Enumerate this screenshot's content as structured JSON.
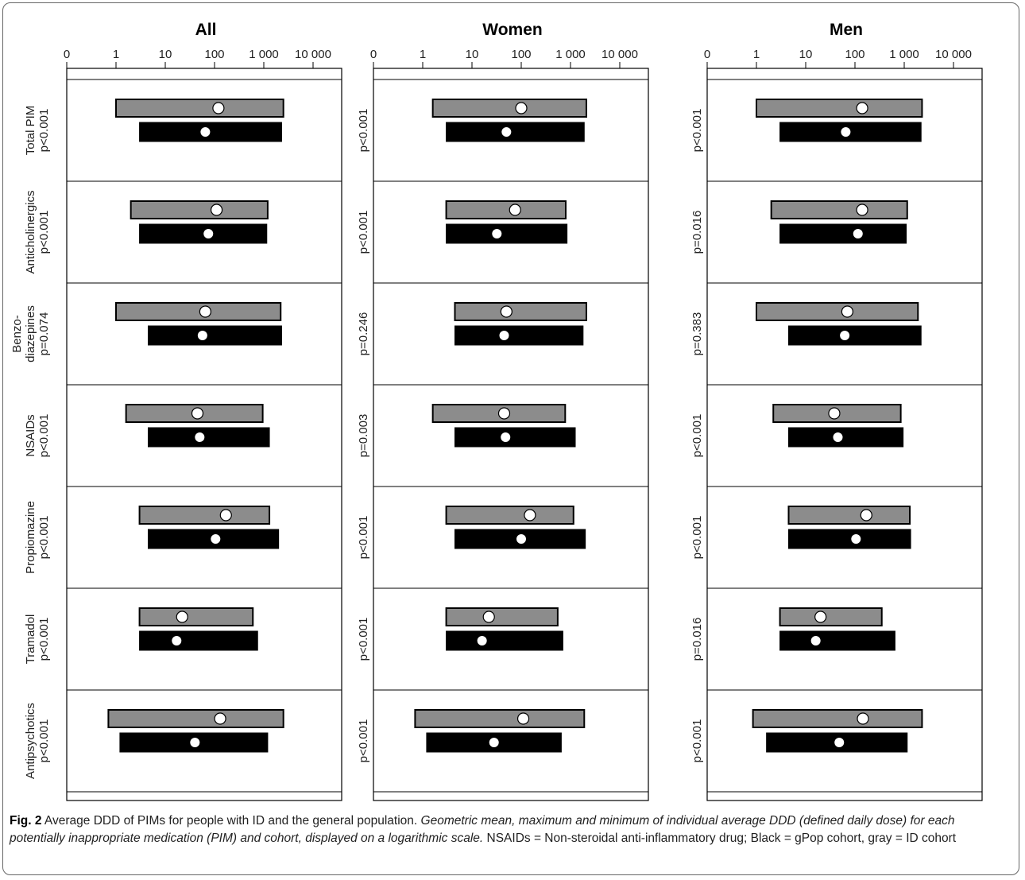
{
  "chart_data": {
    "type": "bar",
    "scale": "log",
    "series": [
      {
        "name": "gPop cohort",
        "color": "#000000"
      },
      {
        "name": "ID cohort",
        "color": "#8c8c8c"
      }
    ],
    "x_tick_labels": [
      "0",
      "1",
      "10",
      "100",
      "1 000",
      "10 000"
    ],
    "panels": [
      {
        "title": "All",
        "rows": [
          {
            "label_lines": [
              "Total PIM",
              "p<0.001"
            ],
            "pvalue": "",
            "id": {
              "min": 1,
              "max": 2500,
              "mean": 120
            },
            "gpop": {
              "min": 3,
              "max": 2300,
              "mean": 65
            }
          },
          {
            "label_lines": [
              "Anticholinergics",
              "p<0.001"
            ],
            "pvalue": "",
            "id": {
              "min": 2,
              "max": 1200,
              "mean": 110
            },
            "gpop": {
              "min": 3,
              "max": 1150,
              "mean": 75
            }
          },
          {
            "label_lines": [
              "Benzo-",
              "diazepines",
              "p=0.074"
            ],
            "pvalue": "",
            "id": {
              "min": 1,
              "max": 2200,
              "mean": 65
            },
            "gpop": {
              "min": 4.5,
              "max": 2300,
              "mean": 57
            }
          },
          {
            "label_lines": [
              "NSAIDs",
              "p<0.001"
            ],
            "pvalue": "",
            "id": {
              "min": 1.6,
              "max": 950,
              "mean": 45
            },
            "gpop": {
              "min": 4.5,
              "max": 1300,
              "mean": 50
            }
          },
          {
            "label_lines": [
              "Propiomazine",
              "p<0.001"
            ],
            "pvalue": "",
            "id": {
              "min": 3,
              "max": 1300,
              "mean": 170
            },
            "gpop": {
              "min": 4.5,
              "max": 2000,
              "mean": 105
            }
          },
          {
            "label_lines": [
              "Tramadol",
              "p<0.001"
            ],
            "pvalue": "",
            "id": {
              "min": 3,
              "max": 600,
              "mean": 22
            },
            "gpop": {
              "min": 3,
              "max": 750,
              "mean": 17
            }
          },
          {
            "label_lines": [
              "Antipsychotics",
              "p<0.001"
            ],
            "pvalue": "",
            "id": {
              "min": 0.7,
              "max": 2500,
              "mean": 130
            },
            "gpop": {
              "min": 1.2,
              "max": 1200,
              "mean": 40
            }
          }
        ]
      },
      {
        "title": "Women",
        "rows": [
          {
            "label_lines": [],
            "pvalue": "p<0.001",
            "id": {
              "min": 1.6,
              "max": 2100,
              "mean": 100
            },
            "gpop": {
              "min": 3,
              "max": 1900,
              "mean": 50
            }
          },
          {
            "label_lines": [],
            "pvalue": "p<0.001",
            "id": {
              "min": 3,
              "max": 800,
              "mean": 75
            },
            "gpop": {
              "min": 3,
              "max": 850,
              "mean": 32
            }
          },
          {
            "label_lines": [],
            "pvalue": "p=0.246",
            "id": {
              "min": 4.5,
              "max": 2100,
              "mean": 50
            },
            "gpop": {
              "min": 4.5,
              "max": 1800,
              "mean": 45
            }
          },
          {
            "label_lines": [],
            "pvalue": "p=0.003",
            "id": {
              "min": 1.6,
              "max": 780,
              "mean": 45
            },
            "gpop": {
              "min": 4.5,
              "max": 1250,
              "mean": 48
            }
          },
          {
            "label_lines": [],
            "pvalue": "p<0.001",
            "id": {
              "min": 3,
              "max": 1150,
              "mean": 150
            },
            "gpop": {
              "min": 4.5,
              "max": 2000,
              "mean": 100
            }
          },
          {
            "label_lines": [],
            "pvalue": "p<0.001",
            "id": {
              "min": 3,
              "max": 550,
              "mean": 22
            },
            "gpop": {
              "min": 3,
              "max": 700,
              "mean": 16
            }
          },
          {
            "label_lines": [],
            "pvalue": "p<0.001",
            "id": {
              "min": 0.7,
              "max": 1900,
              "mean": 110
            },
            "gpop": {
              "min": 1.2,
              "max": 650,
              "mean": 28
            }
          }
        ]
      },
      {
        "title": "Men",
        "rows": [
          {
            "label_lines": [],
            "pvalue": "p<0.001",
            "id": {
              "min": 1,
              "max": 2300,
              "mean": 140
            },
            "gpop": {
              "min": 3,
              "max": 2200,
              "mean": 65
            }
          },
          {
            "label_lines": [],
            "pvalue": "p=0.016",
            "id": {
              "min": 2,
              "max": 1150,
              "mean": 140
            },
            "gpop": {
              "min": 3,
              "max": 1100,
              "mean": 115
            }
          },
          {
            "label_lines": [],
            "pvalue": "p=0.383",
            "id": {
              "min": 1,
              "max": 1900,
              "mean": 70
            },
            "gpop": {
              "min": 4.5,
              "max": 2200,
              "mean": 62
            }
          },
          {
            "label_lines": [],
            "pvalue": "p<0.001",
            "id": {
              "min": 2.2,
              "max": 850,
              "mean": 38
            },
            "gpop": {
              "min": 4.5,
              "max": 950,
              "mean": 45
            }
          },
          {
            "label_lines": [],
            "pvalue": "p<0.001",
            "id": {
              "min": 4.5,
              "max": 1300,
              "mean": 170
            },
            "gpop": {
              "min": 4.5,
              "max": 1350,
              "mean": 105
            }
          },
          {
            "label_lines": [],
            "pvalue": "p=0.016",
            "id": {
              "min": 3,
              "max": 350,
              "mean": 20
            },
            "gpop": {
              "min": 3,
              "max": 650,
              "mean": 16
            }
          },
          {
            "label_lines": [],
            "pvalue": "p<0.001",
            "id": {
              "min": 0.85,
              "max": 2300,
              "mean": 145
            },
            "gpop": {
              "min": 1.6,
              "max": 1150,
              "mean": 48
            }
          }
        ]
      }
    ]
  },
  "caption": {
    "label": "Fig. 2",
    "title": " Average DDD of PIMs for people with ID and the general population. ",
    "italic": "Geometric mean, maximum and minimum of individual average DDD (defined daily dose) for each potentially inappropriate medication (PIM) and cohort, displayed on a logarithmic scale.",
    "rest": " NSAIDs = Non-steroidal anti-inflammatory drug; Black = gPop cohort, gray = ID cohort"
  }
}
